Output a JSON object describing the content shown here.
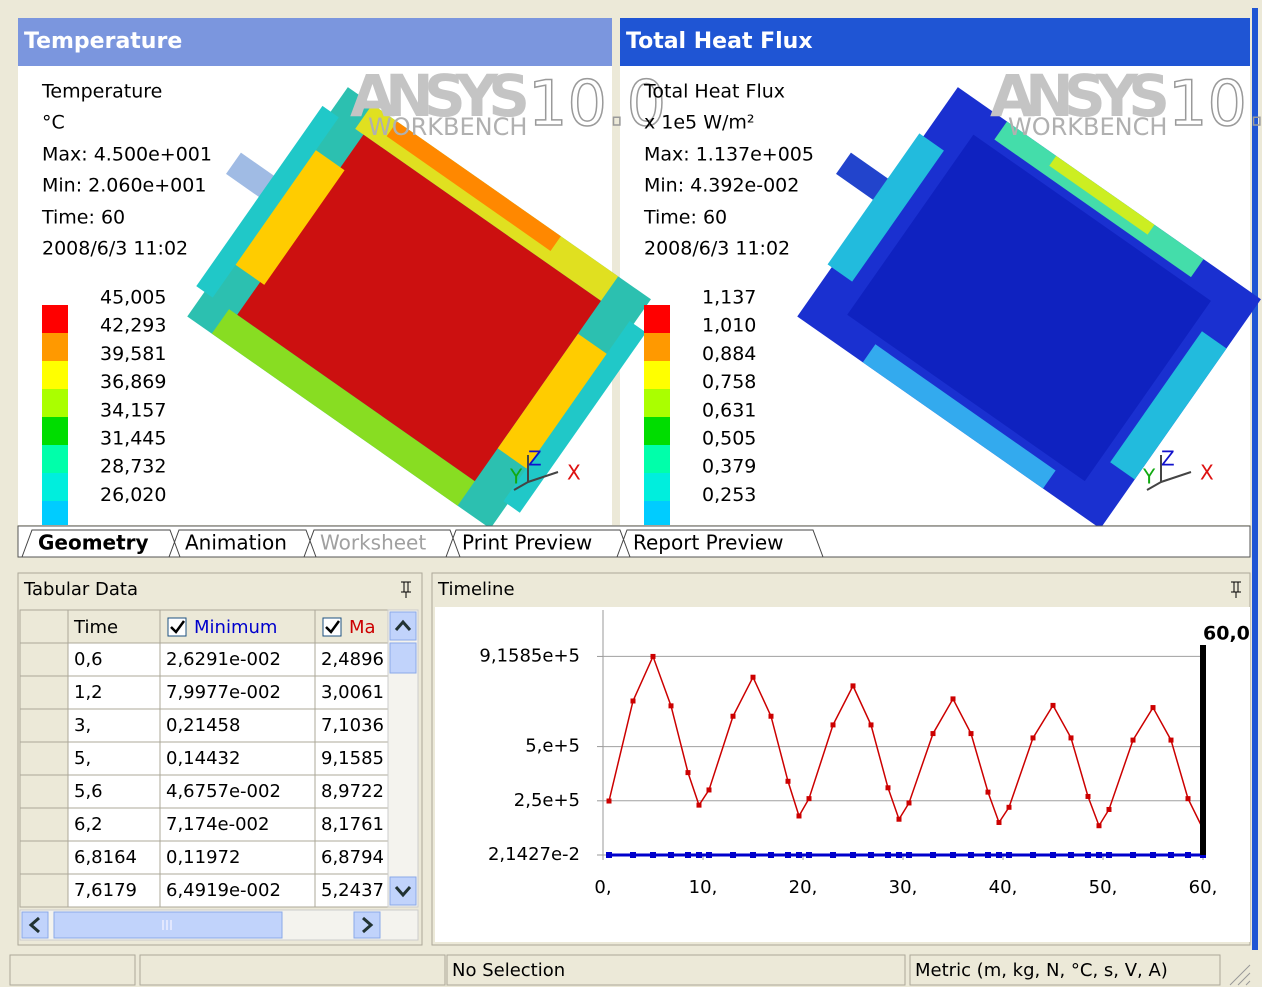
{
  "panels": [
    {
      "title": "Temperature",
      "info": [
        "Temperature",
        "°C",
        "Max: 4.500e+001",
        "Min: 2.060e+001",
        "Time: 60",
        "2008/6/3 11:02"
      ],
      "legend": [
        "45,005",
        "42,293",
        "39,581",
        "36,869",
        "34,157",
        "31,445",
        "28,732",
        "26,020"
      ]
    },
    {
      "title": "Total Heat Flux",
      "info": [
        "Total Heat Flux",
        "x 1e5 W/m²",
        "Max: 1.137e+005",
        "Min: 4.392e-002",
        "Time: 60",
        "2008/6/3 11:02"
      ],
      "legend": [
        "1,137",
        "1,010",
        "0,884",
        "0,758",
        "0,631",
        "0,505",
        "0,379",
        "0,253"
      ]
    }
  ],
  "legend_colors": [
    "#ff0000",
    "#ff9900",
    "#ffff00",
    "#aaff00",
    "#00dd00",
    "#00ffaa",
    "#00eedd",
    "#00ccff",
    "#2299ff"
  ],
  "logo": {
    "brand": "ANSYS",
    "version": "10.0",
    "product": "WORKBENCH"
  },
  "triad": [
    "Y",
    "Z",
    "X"
  ],
  "tabs": [
    "Geometry",
    "Animation",
    "Worksheet",
    "Print Preview",
    "Report Preview"
  ],
  "tabular": {
    "title": "Tabular Data",
    "columns": [
      "Time",
      "Minimum",
      "Ma"
    ],
    "rows": [
      [
        "0,6",
        "2,6291e-002",
        "2,4896"
      ],
      [
        "1,2",
        "7,9977e-002",
        "3,0061"
      ],
      [
        "3,",
        "0,21458",
        "7,1036"
      ],
      [
        "5,",
        "0,14432",
        "9,1585"
      ],
      [
        "5,6",
        "4,6757e-002",
        "8,9722"
      ],
      [
        "6,2",
        "7,174e-002",
        "8,1761"
      ],
      [
        "6,8164",
        "0,11972",
        "6,8794"
      ],
      [
        "7,6179",
        "6,4919e-002",
        "5,2437"
      ]
    ]
  },
  "timeline": {
    "title": "Timeline",
    "type": "line",
    "x": [
      0.6,
      3,
      5,
      6.8,
      8.5,
      9.6,
      10.6,
      13,
      15,
      16.8,
      18.5,
      19.6,
      20.6,
      23,
      25,
      26.8,
      28.5,
      29.6,
      30.6,
      33,
      35,
      36.8,
      38.5,
      39.6,
      40.6,
      43,
      45,
      46.8,
      48.5,
      49.6,
      50.6,
      53,
      55,
      56.8,
      58.5,
      60
    ],
    "series": [
      {
        "color": "#0000cc",
        "values": [
          0.026291,
          0.21458,
          0.14432,
          0.11972,
          0.064919,
          0.03,
          0.026291,
          0.21458,
          0.14432,
          0.11972,
          0.064919,
          0.03,
          0.026291,
          0.21458,
          0.14432,
          0.11972,
          0.064919,
          0.03,
          0.026291,
          0.21458,
          0.14432,
          0.11972,
          0.064919,
          0.03,
          0.026291,
          0.21458,
          0.14432,
          0.11972,
          0.064919,
          0.03,
          0.026291,
          0.21458,
          0.14432,
          0.11972,
          0.064919,
          0.03
        ]
      },
      {
        "color": "#cc0000",
        "values": [
          248960,
          710360,
          915850,
          687940,
          380000,
          230000,
          300000,
          640000,
          820000,
          640000,
          340000,
          180000,
          260000,
          600000,
          780000,
          600000,
          310000,
          165000,
          240000,
          560000,
          720000,
          560000,
          290000,
          150000,
          220000,
          540000,
          690000,
          540000,
          270000,
          135000,
          210000,
          530000,
          680000,
          530000,
          260000,
          120000
        ]
      }
    ],
    "xlim": [
      0,
      60
    ],
    "ylim": [
      0,
      1130000
    ],
    "xticks": [
      {
        "value": 0,
        "label": "0,"
      },
      {
        "value": 10,
        "label": "10,"
      },
      {
        "value": 20,
        "label": "20,"
      },
      {
        "value": 30,
        "label": "30,"
      },
      {
        "value": 40,
        "label": "40,"
      },
      {
        "value": 50,
        "label": "50,"
      },
      {
        "value": 60,
        "label": "60,"
      }
    ],
    "yticks": [
      {
        "value": 0.021427,
        "label": "2,1427e-2"
      },
      {
        "value": 250000,
        "label": "2,5e+5"
      },
      {
        "value": 500000,
        "label": "5,e+5"
      },
      {
        "value": 915850,
        "label": "9,1585e+5"
      }
    ],
    "grid": true,
    "cursor": {
      "value": 60,
      "label": "60,0"
    }
  },
  "status": [
    "No Selection",
    "Metric (m, kg, N, °C, s, V, A)"
  ]
}
